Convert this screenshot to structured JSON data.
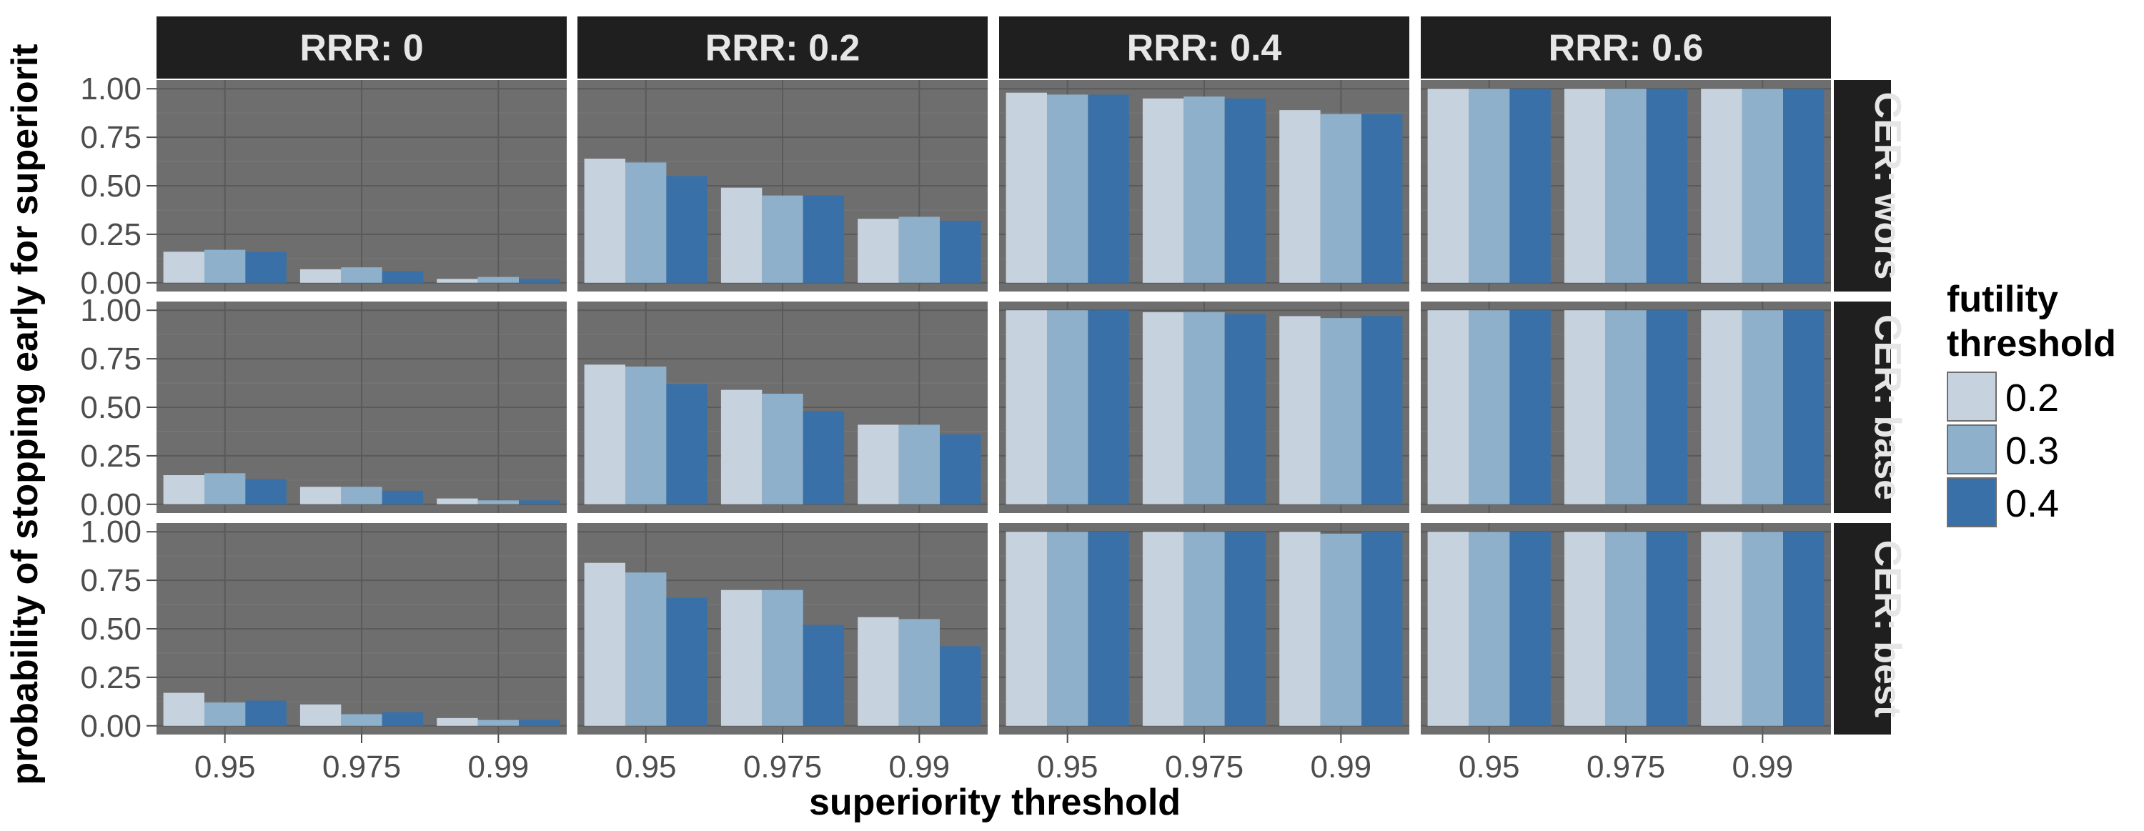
{
  "chart_data": {
    "type": "bar",
    "facet_columns": [
      "RRR: 0",
      "RRR: 0.2",
      "RRR: 0.4",
      "RRR: 0.6"
    ],
    "facet_rows": [
      "CER: wors",
      "CER: base",
      "CER: best"
    ],
    "categories": [
      "0.95",
      "0.975",
      "0.99"
    ],
    "xlabel": "superiority threshold",
    "ylabel": "probability of stopping early for superiorit",
    "ylim": [
      0,
      1
    ],
    "yticks": [
      "0.00",
      "0.25",
      "0.50",
      "0.75",
      "1.00"
    ],
    "legend": {
      "title_lines": [
        "futility",
        "threshold"
      ],
      "position": "right",
      "entries": [
        "0.2",
        "0.3",
        "0.4"
      ]
    },
    "series_colors": [
      "#c6d2de",
      "#8eb0cb",
      "#3a70a8"
    ],
    "panel_background": "#6e6e6e",
    "strip_background": "#1f1f1f",
    "grid": true,
    "panels": [
      [
        [
          [
            0.16,
            0.17,
            0.16
          ],
          [
            0.07,
            0.08,
            0.06
          ],
          [
            0.02,
            0.03,
            0.02
          ]
        ],
        [
          [
            0.64,
            0.62,
            0.55
          ],
          [
            0.49,
            0.45,
            0.45
          ],
          [
            0.33,
            0.34,
            0.32
          ]
        ],
        [
          [
            0.98,
            0.97,
            0.97
          ],
          [
            0.95,
            0.96,
            0.95
          ],
          [
            0.89,
            0.87,
            0.87
          ]
        ],
        [
          [
            1.0,
            1.0,
            1.0
          ],
          [
            1.0,
            1.0,
            1.0
          ],
          [
            1.0,
            1.0,
            1.0
          ]
        ]
      ],
      [
        [
          [
            0.15,
            0.16,
            0.13
          ],
          [
            0.09,
            0.09,
            0.07
          ],
          [
            0.03,
            0.02,
            0.02
          ]
        ],
        [
          [
            0.72,
            0.71,
            0.62
          ],
          [
            0.59,
            0.57,
            0.48
          ],
          [
            0.41,
            0.41,
            0.36
          ]
        ],
        [
          [
            1.0,
            1.0,
            1.0
          ],
          [
            0.99,
            0.99,
            0.98
          ],
          [
            0.97,
            0.96,
            0.97
          ]
        ],
        [
          [
            1.0,
            1.0,
            1.0
          ],
          [
            1.0,
            1.0,
            1.0
          ],
          [
            1.0,
            1.0,
            1.0
          ]
        ]
      ],
      [
        [
          [
            0.17,
            0.12,
            0.13
          ],
          [
            0.11,
            0.06,
            0.07
          ],
          [
            0.04,
            0.03,
            0.03
          ]
        ],
        [
          [
            0.84,
            0.79,
            0.66
          ],
          [
            0.7,
            0.7,
            0.52
          ],
          [
            0.56,
            0.55,
            0.41
          ]
        ],
        [
          [
            1.0,
            1.0,
            1.0
          ],
          [
            1.0,
            1.0,
            1.0
          ],
          [
            1.0,
            0.99,
            1.0
          ]
        ],
        [
          [
            1.0,
            1.0,
            1.0
          ],
          [
            1.0,
            1.0,
            1.0
          ],
          [
            1.0,
            1.0,
            1.0
          ]
        ]
      ]
    ]
  }
}
